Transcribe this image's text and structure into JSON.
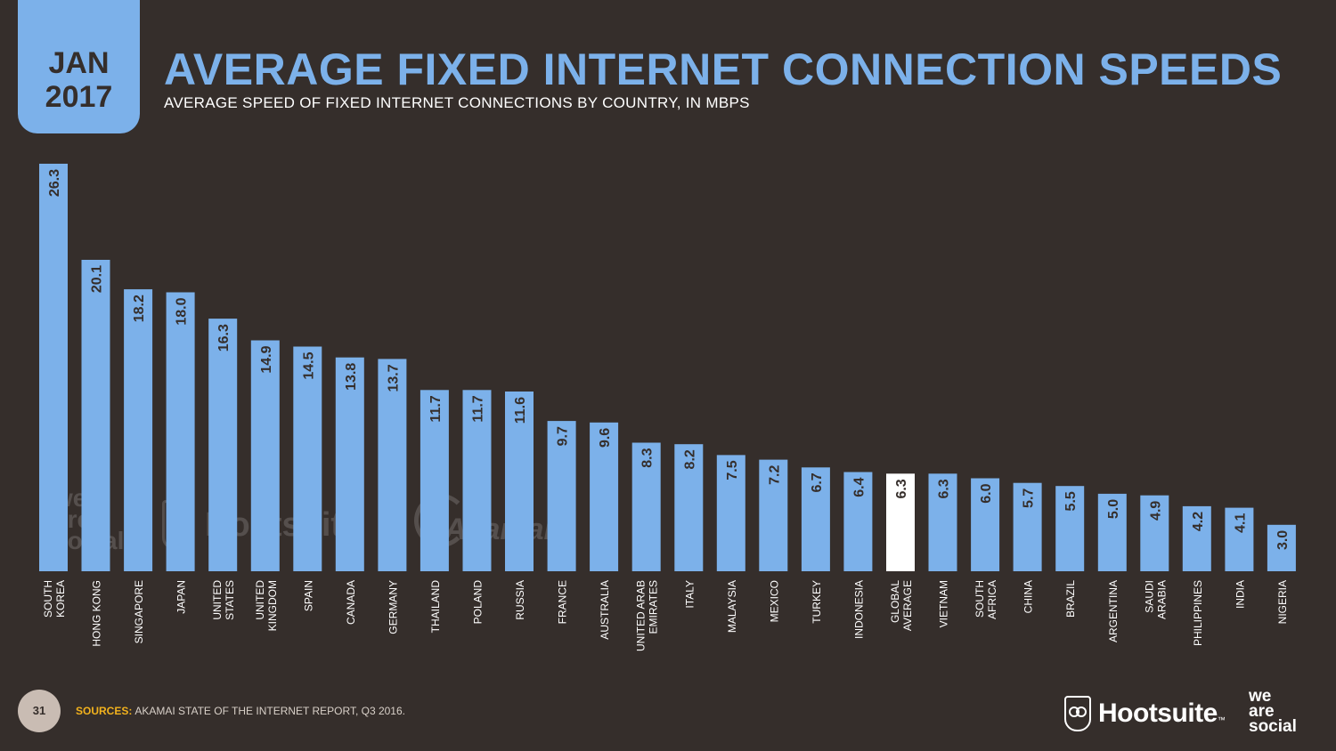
{
  "header": {
    "date_month": "JAN",
    "date_year": "2017",
    "title": "AVERAGE FIXED INTERNET CONNECTION SPEEDS",
    "subtitle": "AVERAGE SPEED OF FIXED INTERNET CONNECTIONS BY COUNTRY, IN MBPS"
  },
  "footer": {
    "page_number": "31",
    "sources_label": "SOURCES:",
    "sources_text": "AKAMAI STATE OF THE INTERNET REPORT, Q3 2016."
  },
  "brands": {
    "hootsuite": "Hootsuite",
    "hootsuite_tm": "™",
    "we_are_social": [
      "we",
      "are",
      "social"
    ],
    "watermark_akamai": "Akamai"
  },
  "colors": {
    "background": "#352e2b",
    "bar": "#7cb1ea",
    "bar_highlight": "#ffffff",
    "label_text": "#352e2b",
    "category_text": "#ffffff",
    "sources_label": "#f2b21d"
  },
  "chart_data": {
    "type": "bar",
    "orientation": "vertical",
    "title": "AVERAGE FIXED INTERNET CONNECTION SPEEDS",
    "subtitle": "AVERAGE SPEED OF FIXED INTERNET CONNECTIONS BY COUNTRY, IN MBPS",
    "categories": [
      [
        "SOUTH",
        "KOREA"
      ],
      [
        "HONG KONG"
      ],
      [
        "SINGAPORE"
      ],
      [
        "JAPAN"
      ],
      [
        "UNITED",
        "STATES"
      ],
      [
        "UNITED",
        "KINGDOM"
      ],
      [
        "SPAIN"
      ],
      [
        "CANADA"
      ],
      [
        "GERMANY"
      ],
      [
        "THAILAND"
      ],
      [
        "POLAND"
      ],
      [
        "RUSSIA"
      ],
      [
        "FRANCE"
      ],
      [
        "AUSTRALIA"
      ],
      [
        "UNITED ARAB",
        "EMIRATES"
      ],
      [
        "ITALY"
      ],
      [
        "MALAYSIA"
      ],
      [
        "MEXICO"
      ],
      [
        "TURKEY"
      ],
      [
        "INDONESIA"
      ],
      [
        "GLOBAL",
        "AVERAGE"
      ],
      [
        "VIETNAM"
      ],
      [
        "SOUTH",
        "AFRICA"
      ],
      [
        "CHINA"
      ],
      [
        "BRAZIL"
      ],
      [
        "ARGENTINA"
      ],
      [
        "SAUDI",
        "ARABIA"
      ],
      [
        "PHILIPPINES"
      ],
      [
        "INDIA"
      ],
      [
        "NIGERIA"
      ]
    ],
    "values": [
      26.3,
      20.1,
      18.2,
      18.0,
      16.3,
      14.9,
      14.5,
      13.8,
      13.7,
      11.7,
      11.7,
      11.6,
      9.7,
      9.6,
      8.3,
      8.2,
      7.5,
      7.2,
      6.7,
      6.4,
      6.3,
      6.3,
      6.0,
      5.7,
      5.5,
      5.0,
      4.9,
      4.2,
      4.1,
      3.0
    ],
    "value_labels": [
      "26.3",
      "20.1",
      "18.2",
      "18.0",
      "16.3",
      "14.9",
      "14.5",
      "13.8",
      "13.7",
      "11.7",
      "11.7",
      "11.6",
      "9.7",
      "9.6",
      "8.3",
      "8.2",
      "7.5",
      "7.2",
      "6.7",
      "6.4",
      "6.3",
      "6.3",
      "6.0",
      "5.7",
      "5.5",
      "5.0",
      "4.9",
      "4.2",
      "4.1",
      "3.0"
    ],
    "highlight_index": 20,
    "ylim": [
      0,
      26.3
    ],
    "grid": false,
    "legend": "none"
  }
}
